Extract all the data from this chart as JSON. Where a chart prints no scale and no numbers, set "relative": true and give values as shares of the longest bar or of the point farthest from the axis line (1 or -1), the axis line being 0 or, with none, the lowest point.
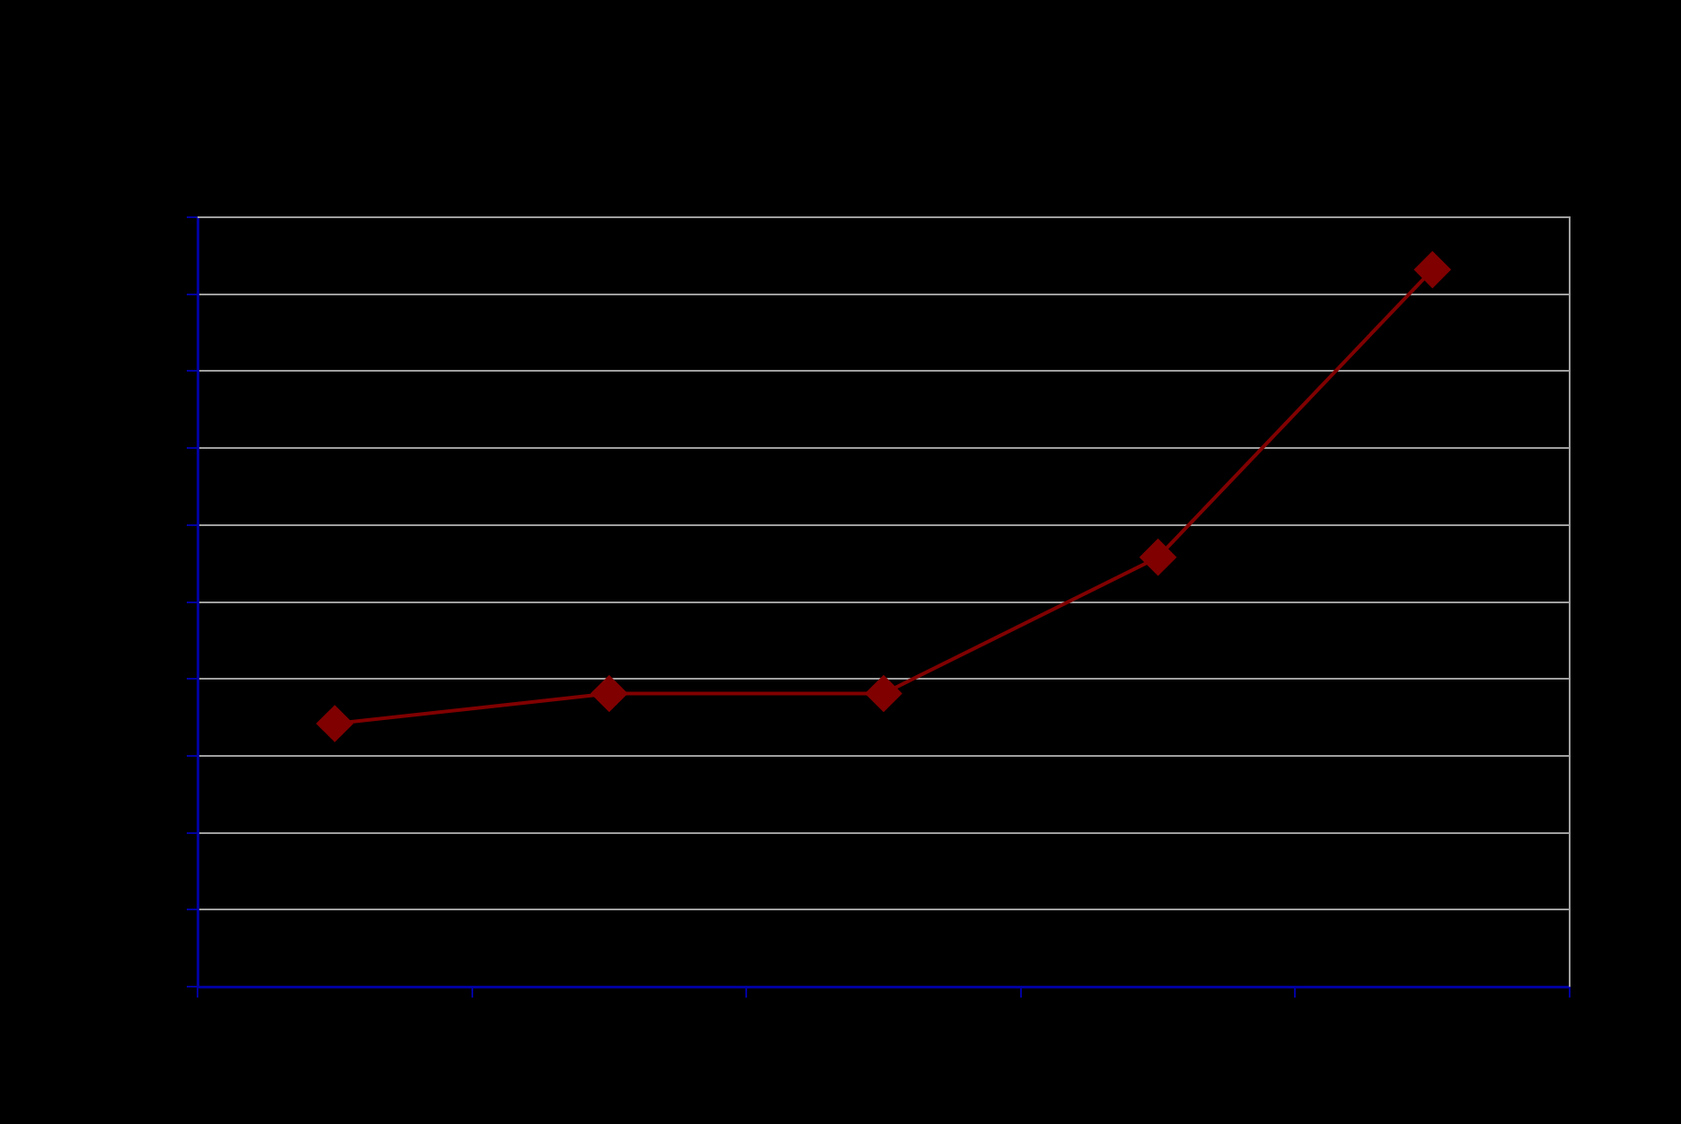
{
  "chart_data": {
    "type": "line",
    "relative": true,
    "categories": [
      null,
      null,
      null,
      null,
      null
    ],
    "series": [
      {
        "color": "#800000",
        "values": [
          0.367,
          0.409,
          0.409,
          0.599,
          1
        ]
      }
    ],
    "marker": "diamond",
    "line_style": "solid",
    "grid": "y",
    "legend": false
  }
}
